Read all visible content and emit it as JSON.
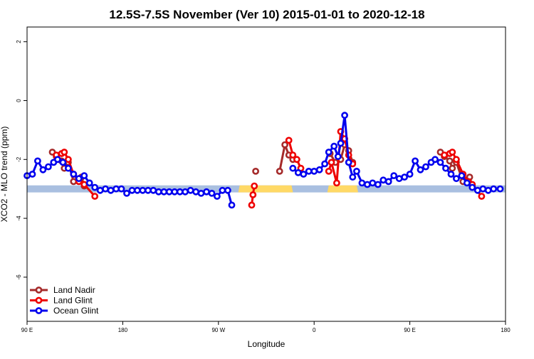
{
  "chart_data": {
    "type": "line",
    "title": "12.5S-7.5S November (Ver 10)   2015-01-01 to 2020-12-18",
    "xlabel": "Longitude",
    "ylabel": "XCO2 - MLO trend (ppm)",
    "xlim": [
      -90,
      270
    ],
    "ylim": [
      -7.5,
      2.5
    ],
    "x_ticks": [
      {
        "value": -90,
        "label": "90 E"
      },
      {
        "value": -18,
        "label": "180"
      },
      {
        "value": 54,
        "label": "90 W"
      },
      {
        "value": 126,
        "label": "0"
      },
      {
        "value": 198,
        "label": "90 E"
      },
      {
        "value": 270,
        "label": "180"
      }
    ],
    "y_ticks": [
      {
        "value": -6,
        "label": "-6"
      },
      {
        "value": -4,
        "label": "-4"
      },
      {
        "value": -2,
        "label": "-2"
      },
      {
        "value": 0,
        "label": "0"
      },
      {
        "value": 2,
        "label": "2"
      }
    ],
    "grid": false,
    "legend_position": "bottom-left",
    "band": {
      "y0": -3.12,
      "y1": -2.88
    },
    "band_colors": {
      "ocean": "#a9bfe0",
      "land": "#ffd966"
    },
    "land_spans": [
      [
        70,
        109
      ],
      [
        137,
        158
      ]
    ],
    "series": [
      {
        "name": "Land Nadir",
        "color": "#a52a2a",
        "segments": [
          [
            [
              -71,
              -1.75
            ],
            [
              -68,
              -1.9
            ],
            [
              -64,
              -2.05
            ],
            [
              -62,
              -2.3
            ],
            [
              -59,
              -2.1
            ],
            [
              -55,
              -2.75
            ],
            [
              -49,
              -2.6
            ],
            [
              -47,
              -2.9
            ]
          ],
          [
            [
              82,
              -2.4
            ]
          ],
          [
            [
              100,
              -2.4
            ],
            [
              104,
              -1.5
            ],
            [
              107,
              -1.85
            ],
            [
              110,
              -2.0
            ]
          ],
          [
            [
              138,
              -1.8
            ],
            [
              142,
              -2.1
            ],
            [
              146,
              -2.0
            ],
            [
              149,
              -1.5
            ],
            [
              152,
              -1.7
            ],
            [
              155,
              -2.1
            ]
          ],
          [
            [
              221,
              -1.75
            ],
            [
              224,
              -1.9
            ],
            [
              228,
              -2.05
            ],
            [
              230,
              -2.3
            ],
            [
              233,
              -2.1
            ],
            [
              238,
              -2.75
            ],
            [
              243,
              -2.6
            ],
            [
              245,
              -2.9
            ]
          ]
        ]
      },
      {
        "name": "Land Glint",
        "color": "#ee0000",
        "segments": [
          [
            [
              -68,
              -1.85
            ],
            [
              -64,
              -1.8
            ],
            [
              -62,
              -1.75
            ],
            [
              -59,
              -2.0
            ],
            [
              -55,
              -2.5
            ],
            [
              -51,
              -2.75
            ],
            [
              -47,
              -2.85
            ],
            [
              -39,
              -3.25
            ]
          ],
          [
            [
              79,
              -3.55
            ],
            [
              80,
              -3.2
            ],
            [
              81,
              -2.9
            ]
          ],
          [
            [
              107,
              -1.35
            ],
            [
              110,
              -1.85
            ],
            [
              113,
              -2.0
            ],
            [
              116,
              -2.3
            ]
          ],
          [
            [
              137,
              -2.4
            ],
            [
              139,
              -2.1
            ],
            [
              143,
              -2.8
            ],
            [
              146,
              -1.05
            ],
            [
              149,
              -1.3
            ],
            [
              152,
              -1.85
            ],
            [
              155,
              -2.15
            ]
          ],
          [
            [
              224,
              -1.85
            ],
            [
              228,
              -1.8
            ],
            [
              230,
              -1.75
            ],
            [
              233,
              -2.0
            ],
            [
              238,
              -2.5
            ],
            [
              242,
              -2.75
            ],
            [
              245,
              -2.85
            ],
            [
              252,
              -3.25
            ]
          ]
        ]
      },
      {
        "name": "Ocean Glint",
        "color": "#0000ee",
        "segments": [
          [
            [
              -90,
              -2.55
            ],
            [
              -86,
              -2.5
            ],
            [
              -82,
              -2.05
            ],
            [
              -78,
              -2.35
            ],
            [
              -74,
              -2.25
            ],
            [
              -70,
              -2.1
            ],
            [
              -67,
              -2.0
            ],
            [
              -63,
              -2.1
            ],
            [
              -59,
              -2.3
            ],
            [
              -55,
              -2.5
            ],
            [
              -51,
              -2.65
            ],
            [
              -47,
              -2.55
            ],
            [
              -43,
              -2.8
            ],
            [
              -39,
              -2.95
            ],
            [
              -35,
              -3.05
            ],
            [
              -31,
              -3.0
            ],
            [
              -27,
              -3.05
            ],
            [
              -23,
              -3.0
            ],
            [
              -19,
              -3.0
            ],
            [
              -15,
              -3.15
            ],
            [
              -11,
              -3.05
            ],
            [
              -7,
              -3.05
            ],
            [
              -3,
              -3.05
            ],
            [
              1,
              -3.05
            ],
            [
              5,
              -3.05
            ],
            [
              9,
              -3.1
            ],
            [
              13,
              -3.1
            ],
            [
              17,
              -3.1
            ],
            [
              21,
              -3.1
            ],
            [
              25,
              -3.1
            ],
            [
              29,
              -3.1
            ],
            [
              33,
              -3.05
            ],
            [
              37,
              -3.1
            ],
            [
              41,
              -3.15
            ],
            [
              45,
              -3.1
            ],
            [
              49,
              -3.15
            ],
            [
              53,
              -3.25
            ],
            [
              57,
              -3.05
            ],
            [
              61,
              -3.05
            ],
            [
              64,
              -3.55
            ]
          ],
          [
            [
              110,
              -2.3
            ],
            [
              114,
              -2.45
            ],
            [
              118,
              -2.5
            ],
            [
              122,
              -2.4
            ],
            [
              126,
              -2.4
            ],
            [
              130,
              -2.35
            ],
            [
              134,
              -2.15
            ],
            [
              137,
              -1.75
            ],
            [
              141,
              -1.55
            ],
            [
              144,
              -1.9
            ],
            [
              146,
              -1.45
            ],
            [
              149,
              -0.5
            ],
            [
              152,
              -2.1
            ],
            [
              155,
              -2.6
            ],
            [
              158,
              -2.4
            ],
            [
              162,
              -2.8
            ],
            [
              166,
              -2.85
            ],
            [
              170,
              -2.8
            ],
            [
              174,
              -2.85
            ],
            [
              178,
              -2.7
            ],
            [
              182,
              -2.75
            ],
            [
              186,
              -2.55
            ],
            [
              190,
              -2.65
            ],
            [
              194,
              -2.6
            ],
            [
              198,
              -2.5
            ],
            [
              202,
              -2.05
            ],
            [
              206,
              -2.35
            ],
            [
              210,
              -2.25
            ],
            [
              214,
              -2.1
            ],
            [
              217,
              -2.0
            ],
            [
              221,
              -2.1
            ],
            [
              225,
              -2.3
            ],
            [
              229,
              -2.5
            ],
            [
              233,
              -2.65
            ],
            [
              237,
              -2.55
            ],
            [
              241,
              -2.8
            ],
            [
              245,
              -2.95
            ],
            [
              249,
              -3.05
            ],
            [
              253,
              -3.0
            ],
            [
              257,
              -3.05
            ],
            [
              261,
              -3.0
            ],
            [
              266,
              -3.0
            ]
          ]
        ]
      }
    ]
  }
}
